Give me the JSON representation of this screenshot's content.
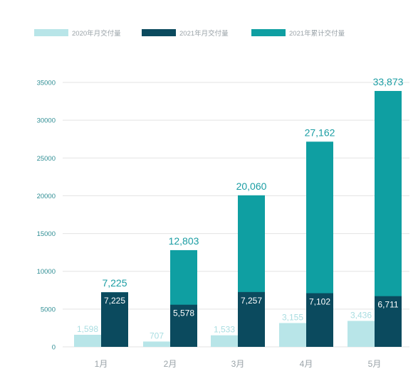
{
  "chart_data": {
    "type": "bar",
    "categories": [
      "1月",
      "2月",
      "3月",
      "4月",
      "5月"
    ],
    "series": [
      {
        "name": "2020年月交付量",
        "values": [
          1598,
          707,
          1533,
          3155,
          3436
        ],
        "color": "#b8e5e8"
      },
      {
        "name": "2021年月交付量",
        "values": [
          7225,
          5578,
          7257,
          7102,
          6711
        ],
        "color": "#0b4a5e"
      },
      {
        "name": "2021年累计交付量",
        "values": [
          7225,
          12803,
          20060,
          27162,
          33873
        ],
        "color": "#0f9fa2"
      }
    ],
    "value_labels": {
      "2020": [
        "1,598",
        "707",
        "1,533",
        "3,155",
        "3,436"
      ],
      "2021_monthly": [
        "7,225",
        "5,578",
        "7,257",
        "7,102",
        "6,711"
      ],
      "2021_cumulative": [
        "7,225",
        "12,803",
        "20,060",
        "27,162",
        "33,873"
      ]
    },
    "yticks": [
      0,
      5000,
      10000,
      15000,
      20000,
      25000,
      30000,
      35000
    ],
    "ylim": [
      0,
      35000
    ],
    "grid": true,
    "legend_position": "top-left",
    "title": "",
    "xlabel": "",
    "ylabel": ""
  }
}
